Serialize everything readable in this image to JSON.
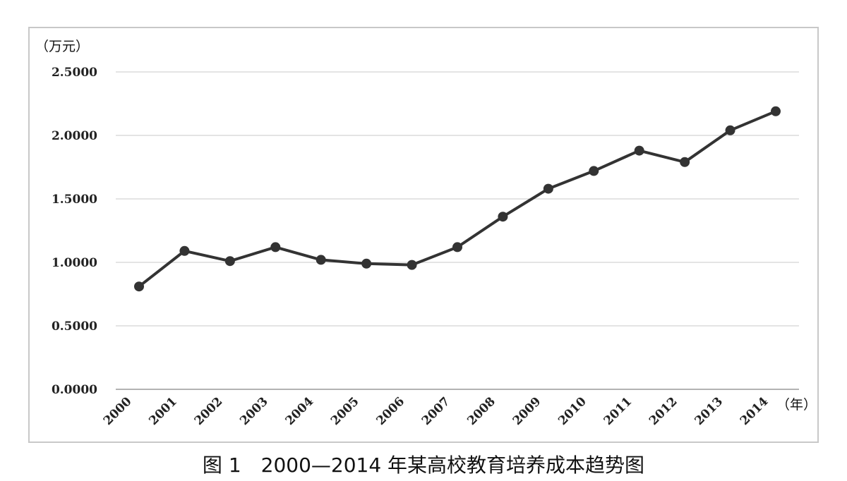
{
  "caption": "图 1　2000—2014 年某高校教育培养成本趋势图",
  "chart_data": {
    "type": "line",
    "title": "",
    "ylabel": "（万元）",
    "xlabel": "（年）",
    "ylim": [
      0,
      2.5
    ],
    "yticks": [
      "0.0000",
      "0.5000",
      "1.0000",
      "1.5000",
      "2.0000",
      "2.5000"
    ],
    "grid": true,
    "categories": [
      "2000",
      "2001",
      "2002",
      "2003",
      "2004",
      "2005",
      "2006",
      "2007",
      "2008",
      "2009",
      "2010",
      "2011",
      "2012",
      "2013",
      "2014"
    ],
    "series": [
      {
        "values": [
          0.81,
          1.09,
          1.01,
          1.12,
          1.02,
          0.99,
          0.98,
          1.12,
          1.36,
          1.58,
          1.72,
          1.88,
          1.79,
          2.04,
          2.19
        ],
        "color": "#333333"
      }
    ]
  }
}
